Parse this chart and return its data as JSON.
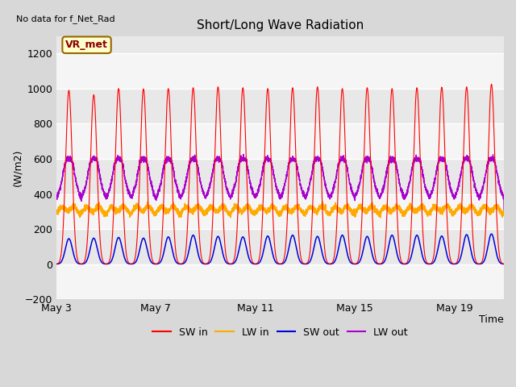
{
  "title": "Short/Long Wave Radiation",
  "xlabel": "Time",
  "ylabel": "(W/m2)",
  "top_left_text": "No data for f_Net_Rad",
  "legend_label": "VR_met",
  "ylim": [
    -200,
    1300
  ],
  "yticks": [
    -200,
    0,
    200,
    400,
    600,
    800,
    1000,
    1200
  ],
  "x_tick_labels": [
    "May 3",
    "May 7",
    "May 11",
    "May 15",
    "May 19"
  ],
  "x_tick_pos": [
    0,
    4,
    8,
    12,
    16
  ],
  "num_days": 18,
  "colors": {
    "SW_in": "#ff0000",
    "LW_in": "#ffaa00",
    "SW_out": "#0000dd",
    "LW_out": "#aa00cc"
  },
  "legend_items": [
    {
      "label": "SW in",
      "color": "#ff0000"
    },
    {
      "label": "LW in",
      "color": "#ffaa00"
    },
    {
      "label": "SW out",
      "color": "#0000dd"
    },
    {
      "label": "LW out",
      "color": "#aa00cc"
    }
  ],
  "background_color": "#d8d8d8",
  "plot_bg_color": "#e8e8e8",
  "grid_color": "#ffffff",
  "SW_in_peaks": [
    990,
    965,
    1000,
    998,
    1000,
    1005,
    1010,
    1005,
    1000,
    1005,
    1010,
    1000,
    1005,
    1000,
    1005,
    1008,
    1010,
    1025
  ],
  "LW_in_base": 295,
  "LW_in_amplitude": 55,
  "SW_out_peaks": [
    145,
    148,
    152,
    148,
    155,
    165,
    158,
    155,
    160,
    165,
    158,
    165,
    158,
    165,
    165,
    160,
    168,
    172
  ],
  "LW_out_base": 340,
  "LW_out_peak": 600,
  "figsize": [
    6.4,
    4.8
  ],
  "dpi": 100
}
